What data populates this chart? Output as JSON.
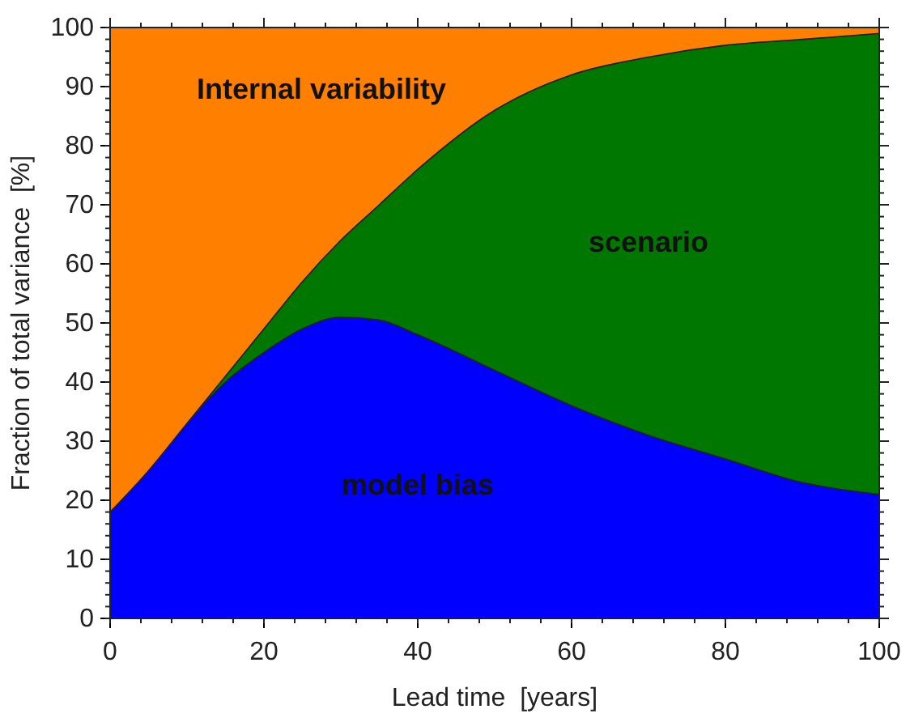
{
  "chart_data": {
    "type": "area",
    "stacked": true,
    "xlabel": "Lead time  [years]",
    "ylabel": "Fraction of total variance  [%]",
    "x": [
      0,
      5,
      10,
      15,
      20,
      25,
      30,
      35,
      40,
      50,
      60,
      70,
      80,
      90,
      100
    ],
    "series": [
      {
        "name": "model bias",
        "color": "#0000ff",
        "values": [
          18,
          25,
          33,
          40,
          45,
          49,
          51,
          50.5,
          48,
          42,
          36,
          31,
          27,
          23,
          21
        ]
      },
      {
        "name": "scenario",
        "color": "#007700",
        "values": [
          0,
          0,
          0,
          1,
          4,
          8,
          13,
          19.5,
          28,
          44,
          56,
          64,
          70,
          75,
          78
        ]
      },
      {
        "name": "Internal variability",
        "color": "#ff8000",
        "values": [
          82,
          75,
          67,
          59,
          51,
          43,
          36,
          30,
          24,
          14,
          8,
          5,
          3,
          2,
          1
        ]
      }
    ],
    "xlim": [
      0,
      100
    ],
    "ylim": [
      0,
      100
    ],
    "xticks": [
      0,
      20,
      40,
      60,
      80,
      100
    ],
    "yticks": [
      0,
      10,
      20,
      30,
      40,
      50,
      60,
      70,
      80,
      90,
      100
    ],
    "grid": false
  }
}
